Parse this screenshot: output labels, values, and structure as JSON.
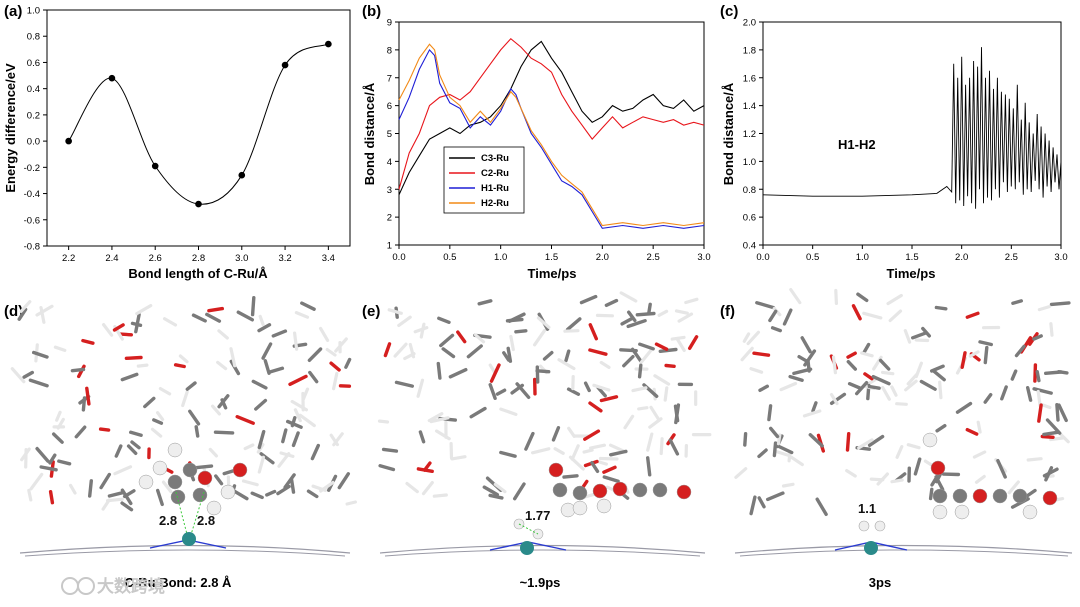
{
  "panels": {
    "a": "(a)",
    "b": "(b)",
    "c": "(c)",
    "d": "(d)",
    "e": "(e)",
    "f": "(f)"
  },
  "chart_data": [
    {
      "id": "a",
      "type": "line",
      "xlabel": "Bond length of C-Ru/Å",
      "ylabel": "Energy difference/eV",
      "xlim": [
        2.1,
        3.5
      ],
      "ylim": [
        -0.8,
        1.0
      ],
      "xticks": [
        "2.2",
        "2.4",
        "2.6",
        "2.8",
        "3.0",
        "3.2",
        "3.4"
      ],
      "yticks": [
        "-0.8",
        "-0.6",
        "-0.4",
        "-0.2",
        "0.0",
        "0.2",
        "0.4",
        "0.6",
        "0.8",
        "1.0"
      ],
      "series": [
        {
          "x": [
            2.2,
            2.4,
            2.6,
            2.8,
            3.0,
            3.2,
            3.4
          ],
          "y": [
            0.0,
            0.48,
            -0.19,
            -0.48,
            -0.26,
            0.58,
            0.74
          ],
          "color": "#000000"
        }
      ]
    },
    {
      "id": "b",
      "type": "line",
      "xlabel": "Time/ps",
      "ylabel": "Bond distance/Å",
      "xlim": [
        0.0,
        3.0
      ],
      "ylim": [
        1,
        9
      ],
      "xticks": [
        "0.0",
        "0.5",
        "1.0",
        "1.5",
        "2.0",
        "2.5",
        "3.0"
      ],
      "yticks": [
        "1",
        "2",
        "3",
        "4",
        "5",
        "6",
        "7",
        "8",
        "9"
      ],
      "legend_position": "center-left",
      "series": [
        {
          "name": "C3-Ru",
          "color": "#000000",
          "x": [
            0.0,
            0.1,
            0.2,
            0.3,
            0.4,
            0.5,
            0.6,
            0.7,
            0.8,
            0.9,
            1.0,
            1.1,
            1.2,
            1.3,
            1.4,
            1.5,
            1.6,
            1.7,
            1.8,
            1.9,
            2.0,
            2.1,
            2.2,
            2.3,
            2.4,
            2.5,
            2.6,
            2.7,
            2.8,
            2.9,
            3.0
          ],
          "y": [
            2.8,
            3.6,
            4.2,
            4.8,
            5.0,
            5.2,
            5.0,
            5.3,
            5.4,
            5.6,
            6.0,
            6.6,
            7.4,
            8.0,
            8.3,
            7.7,
            7.2,
            6.5,
            5.8,
            5.4,
            5.6,
            6.0,
            5.8,
            5.9,
            6.2,
            6.4,
            6.0,
            5.9,
            6.2,
            5.8,
            6.0
          ]
        },
        {
          "name": "C2-Ru",
          "color": "#e8151b",
          "x": [
            0.0,
            0.1,
            0.2,
            0.3,
            0.4,
            0.5,
            0.6,
            0.7,
            0.8,
            0.9,
            1.0,
            1.1,
            1.2,
            1.3,
            1.4,
            1.5,
            1.6,
            1.7,
            1.8,
            1.9,
            2.0,
            2.1,
            2.2,
            2.3,
            2.4,
            2.5,
            2.6,
            2.7,
            2.8,
            2.9,
            3.0
          ],
          "y": [
            3.0,
            4.3,
            5.0,
            6.0,
            6.3,
            6.4,
            6.2,
            6.5,
            7.0,
            7.5,
            8.0,
            8.4,
            8.1,
            7.7,
            7.5,
            7.2,
            6.4,
            5.8,
            5.3,
            4.8,
            5.2,
            5.6,
            5.2,
            5.4,
            5.6,
            5.5,
            5.4,
            5.5,
            5.3,
            5.4,
            5.3
          ]
        },
        {
          "name": "H1-Ru",
          "color": "#1f1fd6",
          "x": [
            0.0,
            0.1,
            0.2,
            0.3,
            0.35,
            0.4,
            0.5,
            0.6,
            0.7,
            0.8,
            0.9,
            1.0,
            1.1,
            1.15,
            1.2,
            1.3,
            1.4,
            1.5,
            1.6,
            1.7,
            1.8,
            1.9,
            2.0,
            2.2,
            2.4,
            2.6,
            2.8,
            3.0
          ],
          "y": [
            5.5,
            6.3,
            7.3,
            8.0,
            7.8,
            6.8,
            6.1,
            5.9,
            5.2,
            5.6,
            5.3,
            5.8,
            6.6,
            6.4,
            5.9,
            5.0,
            4.5,
            3.9,
            3.3,
            3.1,
            2.8,
            2.2,
            1.6,
            1.7,
            1.6,
            1.7,
            1.6,
            1.7
          ]
        },
        {
          "name": "H2-Ru",
          "color": "#f28a17",
          "x": [
            0.0,
            0.1,
            0.2,
            0.3,
            0.35,
            0.4,
            0.5,
            0.6,
            0.7,
            0.8,
            0.9,
            1.0,
            1.1,
            1.15,
            1.2,
            1.3,
            1.4,
            1.5,
            1.6,
            1.7,
            1.8,
            1.9,
            2.0,
            2.2,
            2.4,
            2.6,
            2.8,
            3.0
          ],
          "y": [
            6.2,
            6.9,
            7.7,
            8.2,
            8.0,
            7.1,
            6.3,
            6.0,
            5.4,
            5.8,
            5.4,
            5.9,
            6.5,
            6.3,
            5.9,
            5.1,
            4.6,
            4.0,
            3.5,
            3.2,
            2.9,
            2.3,
            1.7,
            1.8,
            1.7,
            1.8,
            1.7,
            1.8
          ]
        }
      ]
    },
    {
      "id": "c",
      "type": "line",
      "xlabel": "Time/ps",
      "ylabel": "Bond distance/Å",
      "annotation": "H1-H2",
      "xlim": [
        0.0,
        3.0
      ],
      "ylim": [
        0.4,
        2.0
      ],
      "xticks": [
        "0.0",
        "0.5",
        "1.0",
        "1.5",
        "2.0",
        "2.5",
        "3.0"
      ],
      "yticks": [
        "0.4",
        "0.6",
        "0.8",
        "1.0",
        "1.2",
        "1.4",
        "1.6",
        "1.8",
        "2.0"
      ],
      "series": [
        {
          "name": "H1-H2",
          "color": "#000000",
          "x": [
            0.0,
            0.5,
            1.0,
            1.5,
            1.75,
            1.85,
            1.9,
            1.92,
            1.94,
            1.96,
            1.98,
            2.0,
            2.02,
            2.04,
            2.06,
            2.08,
            2.1,
            2.12,
            2.14,
            2.16,
            2.18,
            2.2,
            2.22,
            2.24,
            2.26,
            2.28,
            2.3,
            2.32,
            2.34,
            2.36,
            2.38,
            2.4,
            2.42,
            2.44,
            2.46,
            2.48,
            2.5,
            2.52,
            2.54,
            2.56,
            2.58,
            2.6,
            2.62,
            2.64,
            2.66,
            2.68,
            2.7,
            2.72,
            2.74,
            2.76,
            2.78,
            2.8,
            2.82,
            2.84,
            2.86,
            2.88,
            2.9,
            2.92,
            2.94,
            2.96,
            2.98,
            3.0
          ],
          "y": [
            0.76,
            0.75,
            0.75,
            0.76,
            0.77,
            0.82,
            0.78,
            1.7,
            0.7,
            1.6,
            0.72,
            1.75,
            0.68,
            1.55,
            0.75,
            1.6,
            0.7,
            1.72,
            0.66,
            1.68,
            0.8,
            1.82,
            0.7,
            1.6,
            0.74,
            1.65,
            0.72,
            1.52,
            0.8,
            1.6,
            0.74,
            1.5,
            0.85,
            1.48,
            0.78,
            1.45,
            0.82,
            1.38,
            0.8,
            1.55,
            0.85,
            1.3,
            0.76,
            1.42,
            0.8,
            1.28,
            0.78,
            1.2,
            0.86,
            1.34,
            0.8,
            1.25,
            0.74,
            1.2,
            0.82,
            1.15,
            0.78,
            1.1,
            0.85,
            1.05,
            0.8,
            1.0
          ]
        }
      ]
    }
  ],
  "structures": {
    "d": {
      "labels": [
        "2.8",
        "2.8"
      ],
      "caption": "C-Ru Bond: 2.8 Å"
    },
    "e": {
      "labels": [
        "1.77"
      ],
      "caption": "~1.9ps"
    },
    "f": {
      "labels": [
        "1.1"
      ],
      "caption": "3ps"
    }
  },
  "watermark": "大数跨境",
  "colors": {
    "ruthenium": "#2a8a8a",
    "oxygen": "#d51f1f",
    "carbon": "#7a7a7a",
    "hydrogen": "#eeeeee",
    "graphene": "#9a9aa6"
  }
}
